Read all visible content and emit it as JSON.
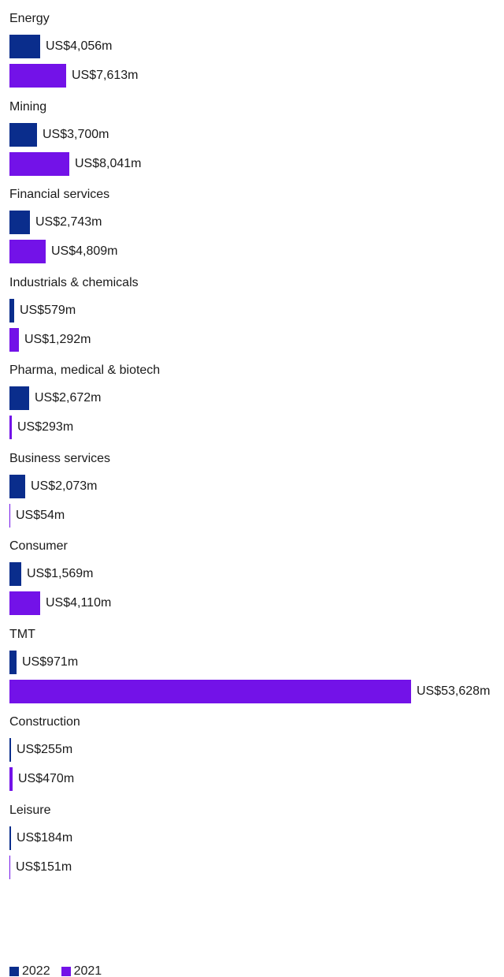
{
  "colors": {
    "2022": "#0a2d8c",
    "2021": "#7312e8"
  },
  "chart_data": {
    "type": "bar",
    "orientation": "horizontal",
    "unit_prefix": "US$",
    "unit_suffix": "m",
    "categories": [
      "Energy",
      "Mining",
      "Financial services",
      "Industrials & chemicals",
      "Pharma, medical & biotech",
      "Business services",
      "Consumer",
      "TMT",
      "Construction",
      "Leisure"
    ],
    "series": [
      {
        "name": "2022",
        "values": [
          4056,
          3700,
          2743,
          579,
          2672,
          2073,
          1569,
          971,
          255,
          184
        ],
        "labels": [
          "US$4,056m",
          "US$3,700m",
          "US$2,743m",
          "US$579m",
          "US$2,672m",
          "US$2,073m",
          "US$1,569m",
          "US$971m",
          "US$255m",
          "US$184m"
        ]
      },
      {
        "name": "2021",
        "values": [
          7613,
          8041,
          4809,
          1292,
          293,
          54,
          4110,
          53628,
          470,
          151
        ],
        "labels": [
          "US$7,613m",
          "US$8,041m",
          "US$4,809m",
          "US$1,292m",
          "US$293m",
          "US$54m",
          "US$4,110m",
          "US$53,628m",
          "US$470m",
          "US$151m"
        ]
      }
    ],
    "legend": {
      "placement": "bottom-left",
      "entries": [
        "2022",
        "2021"
      ]
    },
    "grid": false
  }
}
